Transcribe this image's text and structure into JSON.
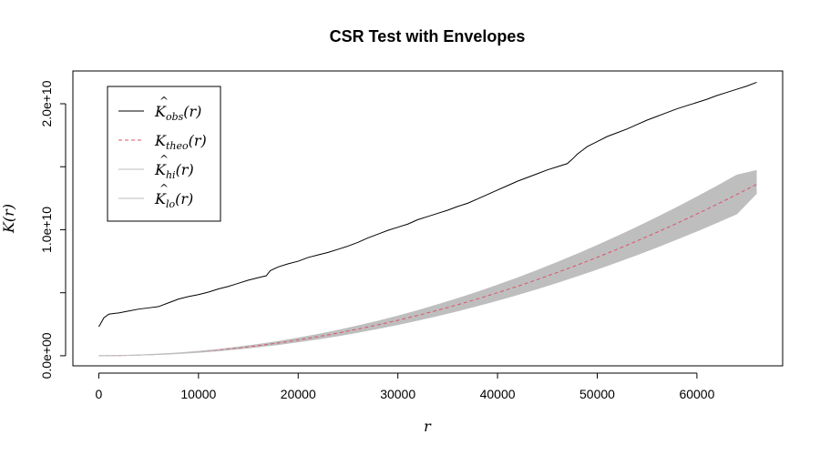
{
  "chart_data": {
    "type": "line",
    "title": "CSR Test with Envelopes",
    "xlabel": "r",
    "ylabel": "K(r)",
    "xlim": [
      -2600,
      68600
    ],
    "ylim": [
      -800000000,
      22600000000
    ],
    "x_ticks": [
      0,
      10000,
      20000,
      30000,
      40000,
      50000,
      60000
    ],
    "x_tick_labels": [
      "0",
      "10000",
      "20000",
      "30000",
      "40000",
      "50000",
      "60000"
    ],
    "y_ticks": [
      0,
      5000000000,
      10000000000,
      15000000000,
      20000000000
    ],
    "y_tick_labels": [
      "0.0e+00",
      "",
      "1.0e+10",
      "",
      "2.0e+10"
    ],
    "grid": false,
    "legend_position": "top-left",
    "series": [
      {
        "name": "K̂obs(r)",
        "legend_base": "K",
        "legend_hat": true,
        "legend_sub": "obs",
        "color": "#000000",
        "dash": "solid",
        "x": [
          0,
          500,
          1000,
          1500,
          2000,
          3000,
          4000,
          5000,
          6000,
          7000,
          8000,
          9000,
          10000,
          11000,
          12000,
          13000,
          14000,
          15000,
          16000,
          16800,
          17200,
          18000,
          19000,
          20000,
          21000,
          22000,
          23000,
          24000,
          25000,
          26000,
          27000,
          28000,
          29000,
          30000,
          31000,
          32000,
          33000,
          34000,
          35000,
          36000,
          37000,
          38000,
          39000,
          40000,
          41000,
          42000,
          43000,
          44000,
          45000,
          46000,
          47000,
          47500,
          48000,
          48500,
          49000,
          50000,
          51000,
          52000,
          53000,
          54000,
          55000,
          56000,
          57000,
          58000,
          59000,
          60000,
          61000,
          62000,
          63000,
          64000,
          65000,
          66000
        ],
        "values": [
          2300000000,
          3000000000,
          3300000000,
          3350000000,
          3400000000,
          3550000000,
          3700000000,
          3800000000,
          3900000000,
          4200000000,
          4500000000,
          4700000000,
          4850000000,
          5050000000,
          5300000000,
          5500000000,
          5750000000,
          6000000000,
          6200000000,
          6350000000,
          6750000000,
          7050000000,
          7300000000,
          7500000000,
          7800000000,
          8000000000,
          8200000000,
          8450000000,
          8700000000,
          9000000000,
          9350000000,
          9650000000,
          9950000000,
          10200000000,
          10450000000,
          10800000000,
          11050000000,
          11300000000,
          11550000000,
          11850000000,
          12100000000,
          12450000000,
          12800000000,
          13150000000,
          13500000000,
          13850000000,
          14150000000,
          14450000000,
          14750000000,
          15000000000,
          15250000000,
          15600000000,
          16000000000,
          16300000000,
          16600000000,
          17000000000,
          17400000000,
          17700000000,
          18000000000,
          18350000000,
          18700000000,
          19000000000,
          19300000000,
          19600000000,
          19850000000,
          20100000000,
          20350000000,
          20650000000,
          20900000000,
          21150000000,
          21400000000,
          21700000000
        ]
      },
      {
        "name": "Ktheo(r)",
        "legend_base": "K",
        "legend_hat": false,
        "legend_sub": "theo",
        "color": "#df536b",
        "dash": "dashed",
        "x": [
          0,
          2000,
          4000,
          6000,
          8000,
          10000,
          12000,
          14000,
          16000,
          18000,
          20000,
          22000,
          24000,
          26000,
          28000,
          30000,
          32000,
          34000,
          36000,
          38000,
          40000,
          42000,
          44000,
          46000,
          48000,
          50000,
          52000,
          54000,
          56000,
          58000,
          60000,
          62000,
          64000,
          66000
        ],
        "values": [
          0,
          12500000,
          50000000,
          112500000,
          200000000,
          312500000,
          450000000,
          612500000,
          800000000,
          1012500000,
          1250000000,
          1512500000,
          1800000000,
          2112500000,
          2450000000,
          2812500000,
          3200000000,
          3612500000,
          4050000000,
          4512500000,
          5000000000,
          5512500000,
          6050000000,
          6612500000,
          7200000000,
          7812500000,
          8450000000,
          9112500000,
          9800000000,
          10512500000,
          11250000000,
          12012500000,
          12800000000,
          13612500000
        ]
      },
      {
        "name": "K̂hi(r)",
        "legend_base": "K",
        "legend_hat": true,
        "legend_sub": "hi",
        "color": "#bebebe",
        "dash": "solid",
        "x": [
          0,
          2000,
          4000,
          6000,
          8000,
          10000,
          12000,
          14000,
          16000,
          18000,
          20000,
          22000,
          24000,
          26000,
          28000,
          30000,
          32000,
          34000,
          36000,
          38000,
          40000,
          42000,
          44000,
          46000,
          48000,
          50000,
          52000,
          54000,
          56000,
          58000,
          60000,
          62000,
          64000,
          66000
        ],
        "values": [
          0,
          14000000,
          56000000,
          126000000,
          224000000,
          350000000,
          504000000,
          686000000,
          896000000,
          1134000000,
          1400000000,
          1694000000,
          2016000000,
          2366000000,
          2744000000,
          3150000000,
          3584000000,
          4046000000,
          4536000000,
          5054000000,
          5600000000,
          6174000000,
          6776000000,
          7406000000,
          8064000000,
          8750000000,
          9464000000,
          10206000000,
          10976000000,
          11774000000,
          12600000000,
          13454000000,
          14336000000,
          14700000000
        ]
      },
      {
        "name": "K̂lo(r)",
        "legend_base": "K",
        "legend_hat": true,
        "legend_sub": "lo",
        "color": "#bebebe",
        "dash": "solid",
        "x": [
          0,
          2000,
          4000,
          6000,
          8000,
          10000,
          12000,
          14000,
          16000,
          18000,
          20000,
          22000,
          24000,
          26000,
          28000,
          30000,
          32000,
          34000,
          36000,
          38000,
          40000,
          42000,
          44000,
          46000,
          48000,
          50000,
          52000,
          54000,
          56000,
          58000,
          60000,
          62000,
          64000,
          66000
        ],
        "values": [
          0,
          11000000,
          44000000,
          99000000,
          176000000,
          275000000,
          396000000,
          539000000,
          704000000,
          891000000,
          1100000000,
          1331000000,
          1584000000,
          1859000000,
          2156000000,
          2475000000,
          2816000000,
          3179000000,
          3564000000,
          3971000000,
          4400000000,
          4851000000,
          5324000000,
          5819000000,
          6336000000,
          6875000000,
          7436000000,
          8019000000,
          8624000000,
          9251000000,
          9900000000,
          10571000000,
          11264000000,
          12900000000
        ]
      }
    ],
    "envelope_fill": "#bebebe"
  }
}
